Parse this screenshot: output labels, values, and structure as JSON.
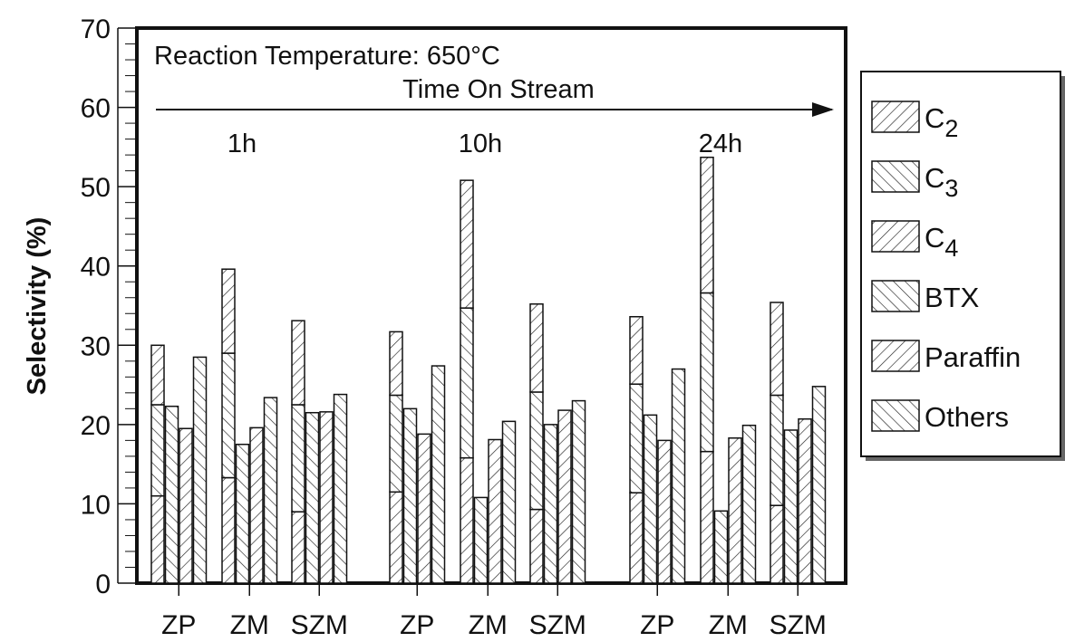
{
  "chart_data": {
    "type": "bar",
    "stacked": true,
    "title": "Reaction Temperature: 650°C",
    "annotation_arrow": "Time On Stream",
    "ylabel": "Selectivity (%)",
    "ylim": [
      0,
      70
    ],
    "yticks": [
      0,
      10,
      20,
      30,
      40,
      50,
      60,
      70
    ],
    "grid": false,
    "legend_position": "right",
    "groups": [
      {
        "time_label": "1h",
        "catalysts": [
          {
            "label": "ZP",
            "bars": [
              [
                11,
                22.5,
                30
              ],
              [
                22.3
              ],
              [
                19.5
              ],
              [
                28.5
              ]
            ]
          },
          {
            "label": "ZM",
            "bars": [
              [
                13.3,
                29,
                39.6
              ],
              [
                17.5
              ],
              [
                19.6
              ],
              [
                23.4
              ]
            ]
          },
          {
            "label": "SZM",
            "bars": [
              [
                9,
                22.5,
                33.1
              ],
              [
                21.5
              ],
              [
                21.6
              ],
              [
                23.8
              ]
            ]
          }
        ]
      },
      {
        "time_label": "10h",
        "catalysts": [
          {
            "label": "ZP",
            "bars": [
              [
                11.5,
                23.7,
                31.7
              ],
              [
                22
              ],
              [
                18.8
              ],
              [
                27.4
              ]
            ]
          },
          {
            "label": "ZM",
            "bars": [
              [
                15.8,
                34.7,
                50.8
              ],
              [
                10.8
              ],
              [
                18.1
              ],
              [
                20.4
              ]
            ]
          },
          {
            "label": "SZM",
            "bars": [
              [
                9.3,
                24.1,
                35.2
              ],
              [
                20
              ],
              [
                21.8
              ],
              [
                23
              ]
            ]
          }
        ]
      },
      {
        "time_label": "24h",
        "catalysts": [
          {
            "label": "ZP",
            "bars": [
              [
                11.4,
                25.1,
                33.6
              ],
              [
                21.2
              ],
              [
                18
              ],
              [
                27
              ]
            ]
          },
          {
            "label": "ZM",
            "bars": [
              [
                16.6,
                36.6,
                53.7
              ],
              [
                9.1
              ],
              [
                18.3
              ],
              [
                19.9
              ]
            ]
          },
          {
            "label": "SZM",
            "bars": [
              [
                9.8,
                23.7,
                35.4
              ],
              [
                19.3
              ],
              [
                20.7
              ],
              [
                24.8
              ]
            ]
          }
        ]
      }
    ],
    "legend": [
      {
        "name": "C",
        "sub": "2"
      },
      {
        "name": "C",
        "sub": "3"
      },
      {
        "name": "C",
        "sub": "4"
      },
      {
        "name": "BTX",
        "sub": ""
      },
      {
        "name": "Paraffin",
        "sub": ""
      },
      {
        "name": "Others",
        "sub": ""
      }
    ]
  }
}
